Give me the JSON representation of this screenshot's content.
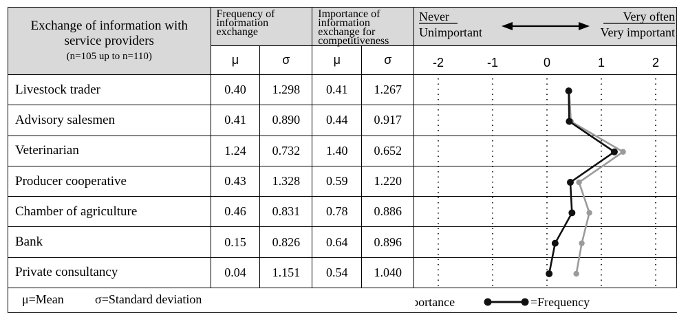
{
  "table": {
    "row_header_title": "Exchange of information with service providers",
    "row_header_sub": "(n=105 up to n=110)",
    "freq_header": "Frequency of information exchange",
    "imp_header": "Importance of information exchange for competitiveness",
    "mu_symbol": "μ",
    "sigma_symbol": "σ",
    "rows": [
      {
        "label": "Livestock trader",
        "freq_mu": "0.40",
        "freq_sigma": "1.298",
        "imp_mu": "0.41",
        "imp_sigma": "1.267"
      },
      {
        "label": "Advisory salesmen",
        "freq_mu": "0.41",
        "freq_sigma": "0.890",
        "imp_mu": "0.44",
        "imp_sigma": "0.917"
      },
      {
        "label": "Veterinarian",
        "freq_mu": "1.24",
        "freq_sigma": "0.732",
        "imp_mu": "1.40",
        "imp_sigma": "0.652"
      },
      {
        "label": "Producer cooperative",
        "freq_mu": "0.43",
        "freq_sigma": "1.328",
        "imp_mu": "0.59",
        "imp_sigma": "1.220"
      },
      {
        "label": "Chamber of agriculture",
        "freq_mu": "0.46",
        "freq_sigma": "0.831",
        "imp_mu": "0.78",
        "imp_sigma": "0.886"
      },
      {
        "label": "Bank",
        "freq_mu": "0.15",
        "freq_sigma": "0.826",
        "imp_mu": "0.64",
        "imp_sigma": "0.896"
      },
      {
        "label": "Private consultancy",
        "freq_mu": "0.04",
        "freq_sigma": "1.151",
        "imp_mu": "0.54",
        "imp_sigma": "1.040"
      }
    ]
  },
  "scale": {
    "left_top": "Never",
    "left_bottom": "Unimportant",
    "right_top": "Very often",
    "right_bottom": "Very important"
  },
  "footer": {
    "mean_note": "μ=Mean",
    "sd_note": "σ=Standard deviation",
    "legend_importance": "=Importance",
    "legend_frequency": "=Frequency"
  },
  "colors": {
    "importance": "#9b9b9b",
    "frequency": "#111111",
    "header_fill": "#d9d9d9"
  },
  "chart_data": {
    "type": "line",
    "categories": [
      "Livestock trader",
      "Advisory salesmen",
      "Veterinarian",
      "Producer cooperative",
      "Chamber of agriculture",
      "Bank",
      "Private consultancy"
    ],
    "x_ticks": [
      -2,
      -1,
      0,
      1,
      2
    ],
    "xlim": [
      -2,
      2
    ],
    "grid": "dotted vertical lines at ticks",
    "series": [
      {
        "name": "=Frequency",
        "values": [
          0.4,
          0.41,
          1.24,
          0.43,
          0.46,
          0.15,
          0.04
        ]
      },
      {
        "name": "=Importance",
        "values": [
          0.41,
          0.44,
          1.4,
          0.59,
          0.78,
          0.64,
          0.54
        ]
      }
    ]
  }
}
